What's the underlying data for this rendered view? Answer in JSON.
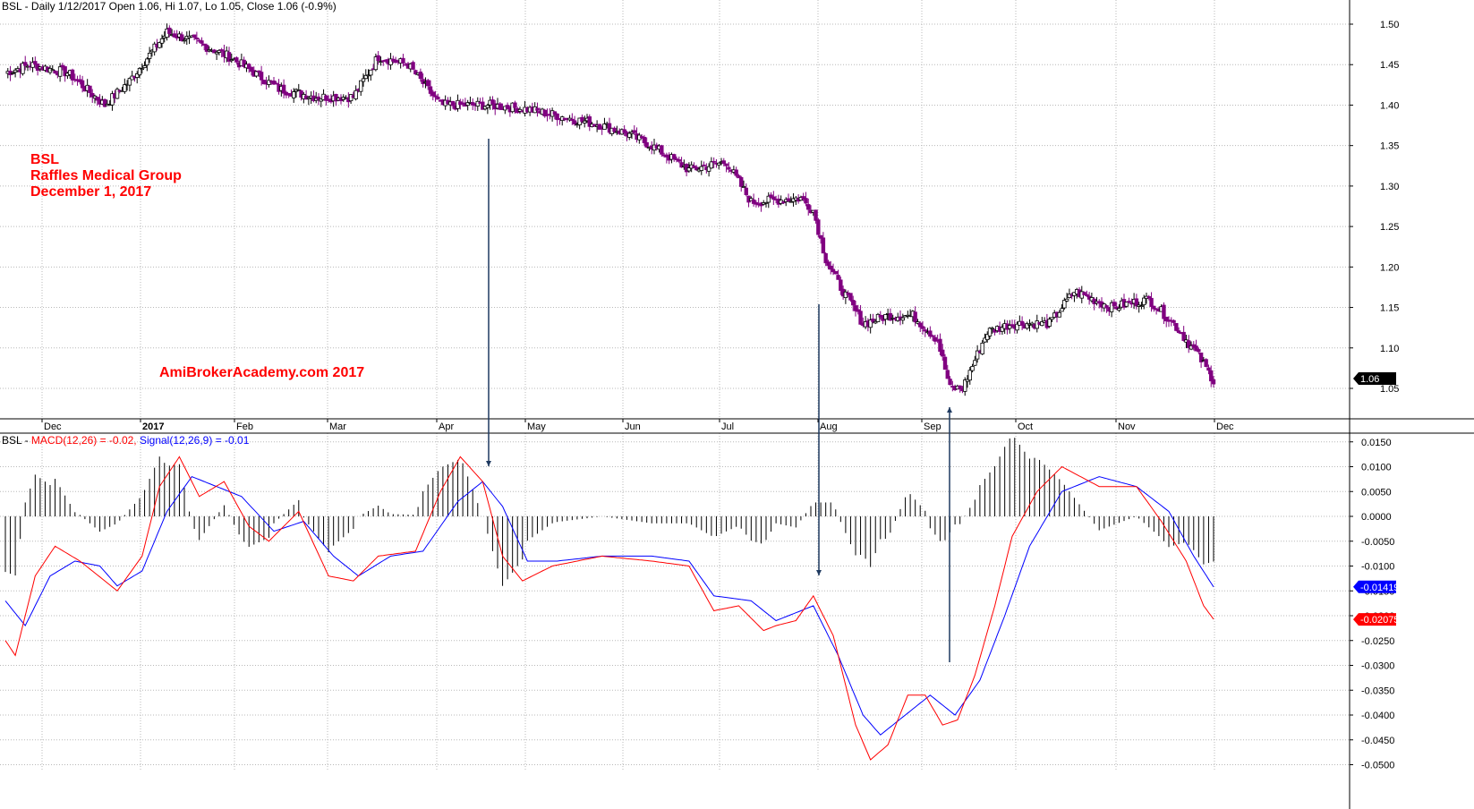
{
  "price_header": "BSL - Daily 1/12/2017 Open 1.06, Hi 1.07, Lo 1.05, Close 1.06 (-0.9%)",
  "macd_header": {
    "ticker": "BSL - ",
    "macd": "MACD(12,26) = -0.02, ",
    "signal": "Signal(12,26,9) = -0.01"
  },
  "annotations": {
    "ticker": "BSL",
    "company": "Raffles Medical Group",
    "date": "December 1, 2017",
    "watermark": "AmiBrokerAcademy.com  2017"
  },
  "colors": {
    "down_candle": "#800080",
    "up_candle": "#ffffff",
    "macd_line": "#ff0000",
    "signal_line": "#0000ff",
    "annotation_text": "#ff0000",
    "arrow": "#1f3a60"
  },
  "chart_data": [
    {
      "type": "candlestick",
      "title": "BSL - Daily 1/12/2017 Open 1.06, Hi 1.07, Lo 1.05, Close 1.06 (-0.9%)",
      "x_tick_labels": [
        "Dec",
        "2017",
        "Feb",
        "Mar",
        "Apr",
        "May",
        "Jun",
        "Jul",
        "Aug",
        "Sep",
        "Oct",
        "Nov",
        "Dec"
      ],
      "y_tick_labels": [
        "1.50",
        "1.45",
        "1.40",
        "1.35",
        "1.30",
        "1.25",
        "1.20",
        "1.15",
        "1.10",
        "1.05"
      ],
      "ylim": [
        1.02,
        1.52
      ],
      "last_close_label": "1.06",
      "series": [
        {
          "name": "BSL",
          "anchors": [
            [
              0,
              1.44
            ],
            [
              10,
              1.45
            ],
            [
              25,
              1.44
            ],
            [
              40,
              1.4
            ],
            [
              50,
              1.43
            ],
            [
              65,
              1.49
            ],
            [
              75,
              1.48
            ],
            [
              90,
              1.46
            ],
            [
              100,
              1.44
            ],
            [
              110,
              1.42
            ],
            [
              125,
              1.41
            ],
            [
              140,
              1.41
            ],
            [
              150,
              1.46
            ],
            [
              162,
              1.45
            ],
            [
              175,
              1.4
            ],
            [
              195,
              1.4
            ],
            [
              210,
              1.395
            ],
            [
              225,
              1.385
            ],
            [
              240,
              1.375
            ],
            [
              250,
              1.365
            ],
            [
              260,
              1.35
            ],
            [
              275,
              1.32
            ],
            [
              290,
              1.33
            ],
            [
              300,
              1.28
            ],
            [
              320,
              1.285
            ],
            [
              325,
              1.27
            ],
            [
              330,
              1.21
            ],
            [
              335,
              1.18
            ],
            [
              345,
              1.13
            ],
            [
              355,
              1.14
            ],
            [
              365,
              1.14
            ],
            [
              375,
              1.11
            ],
            [
              380,
              1.05
            ],
            [
              385,
              1.05
            ],
            [
              395,
              1.12
            ],
            [
              405,
              1.13
            ],
            [
              420,
              1.13
            ],
            [
              430,
              1.17
            ],
            [
              445,
              1.15
            ],
            [
              460,
              1.16
            ],
            [
              470,
              1.13
            ],
            [
              480,
              1.09
            ],
            [
              486,
              1.06
            ]
          ]
        }
      ]
    },
    {
      "type": "line",
      "title": "BSL - MACD(12,26) = -0.02, Signal(12,26,9) = -0.01",
      "y_tick_labels": [
        "0.0150",
        "0.0100",
        "0.0050",
        "0.0000",
        "-0.0050",
        "-0.0100",
        "-0.0150",
        "-0.0200",
        "-0.0250",
        "-0.0300",
        "-0.0350",
        "-0.0400",
        "-0.0450",
        "-0.0500"
      ],
      "ylim": [
        -0.0505,
        0.0155
      ],
      "last_values": {
        "signal": "-0.01419",
        "macd": "-0.02075"
      },
      "series": [
        {
          "name": "MACD(12,26)",
          "anchors": [
            [
              0,
              -0.025
            ],
            [
              4,
              -0.028
            ],
            [
              12,
              -0.012
            ],
            [
              20,
              -0.006
            ],
            [
              30,
              -0.009
            ],
            [
              40,
              -0.013
            ],
            [
              45,
              -0.015
            ],
            [
              55,
              -0.008
            ],
            [
              62,
              0.006
            ],
            [
              70,
              0.012
            ],
            [
              78,
              0.004
            ],
            [
              88,
              0.007
            ],
            [
              98,
              -0.002
            ],
            [
              106,
              -0.005
            ],
            [
              118,
              0.001
            ],
            [
              130,
              -0.012
            ],
            [
              140,
              -0.013
            ],
            [
              150,
              -0.008
            ],
            [
              165,
              -0.007
            ],
            [
              175,
              0.005
            ],
            [
              183,
              0.012
            ],
            [
              192,
              0.007
            ],
            [
              200,
              -0.008
            ],
            [
              208,
              -0.013
            ],
            [
              220,
              -0.01
            ],
            [
              240,
              -0.008
            ],
            [
              260,
              -0.009
            ],
            [
              275,
              -0.01
            ],
            [
              285,
              -0.019
            ],
            [
              295,
              -0.018
            ],
            [
              305,
              -0.023
            ],
            [
              310,
              -0.022
            ],
            [
              318,
              -0.021
            ],
            [
              325,
              -0.016
            ],
            [
              333,
              -0.024
            ],
            [
              342,
              -0.042
            ],
            [
              348,
              -0.049
            ],
            [
              355,
              -0.046
            ],
            [
              363,
              -0.036
            ],
            [
              370,
              -0.036
            ],
            [
              377,
              -0.042
            ],
            [
              383,
              -0.041
            ],
            [
              390,
              -0.032
            ],
            [
              398,
              -0.018
            ],
            [
              405,
              -0.004
            ],
            [
              415,
              0.005
            ],
            [
              425,
              0.01
            ],
            [
              440,
              0.006
            ],
            [
              455,
              0.006
            ],
            [
              465,
              -0.001
            ],
            [
              475,
              -0.009
            ],
            [
              482,
              -0.018
            ],
            [
              486,
              -0.0207
            ]
          ]
        },
        {
          "name": "Signal(12,26,9)",
          "anchors": [
            [
              0,
              -0.017
            ],
            [
              8,
              -0.022
            ],
            [
              18,
              -0.012
            ],
            [
              28,
              -0.009
            ],
            [
              38,
              -0.01
            ],
            [
              45,
              -0.014
            ],
            [
              55,
              -0.011
            ],
            [
              65,
              0.001
            ],
            [
              75,
              0.008
            ],
            [
              85,
              0.006
            ],
            [
              95,
              0.004
            ],
            [
              108,
              -0.003
            ],
            [
              120,
              -0.001
            ],
            [
              132,
              -0.008
            ],
            [
              142,
              -0.012
            ],
            [
              155,
              -0.008
            ],
            [
              168,
              -0.007
            ],
            [
              182,
              0.003
            ],
            [
              192,
              0.007
            ],
            [
              200,
              0.002
            ],
            [
              210,
              -0.009
            ],
            [
              222,
              -0.009
            ],
            [
              240,
              -0.008
            ],
            [
              260,
              -0.008
            ],
            [
              275,
              -0.009
            ],
            [
              285,
              -0.016
            ],
            [
              300,
              -0.017
            ],
            [
              310,
              -0.021
            ],
            [
              320,
              -0.019
            ],
            [
              325,
              -0.018
            ],
            [
              335,
              -0.028
            ],
            [
              345,
              -0.04
            ],
            [
              352,
              -0.044
            ],
            [
              362,
              -0.04
            ],
            [
              372,
              -0.036
            ],
            [
              382,
              -0.04
            ],
            [
              392,
              -0.033
            ],
            [
              402,
              -0.02
            ],
            [
              412,
              -0.006
            ],
            [
              425,
              0.005
            ],
            [
              440,
              0.008
            ],
            [
              455,
              0.006
            ],
            [
              468,
              0.001
            ],
            [
              478,
              -0.008
            ],
            [
              486,
              -0.0142
            ]
          ]
        }
      ]
    }
  ]
}
